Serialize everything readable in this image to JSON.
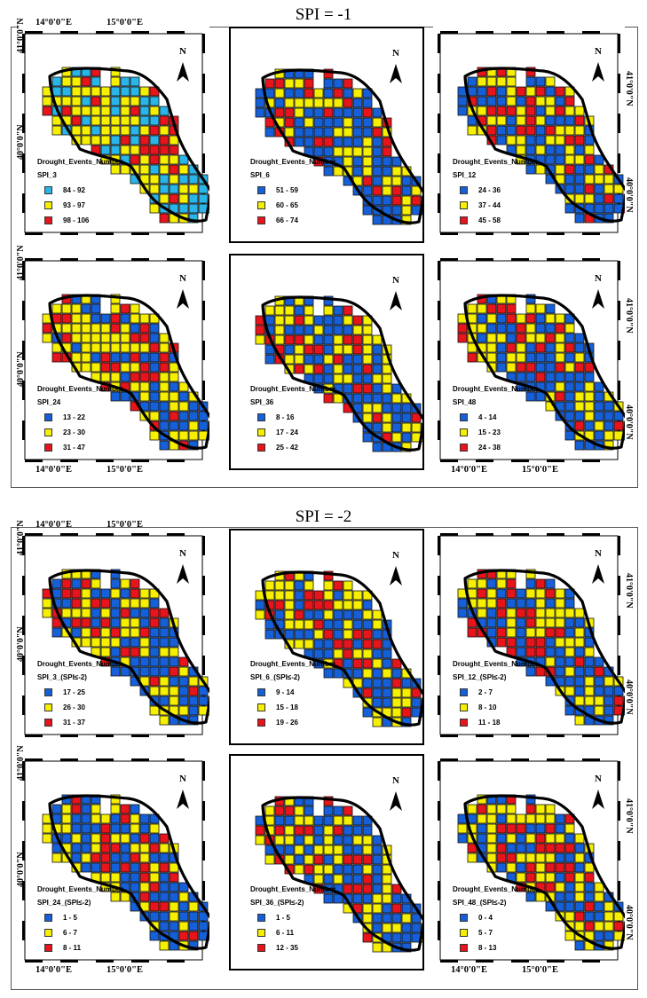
{
  "sections": [
    {
      "title": "SPI = -1",
      "panels": [
        {
          "legend_title": "Drought_Events_Number",
          "index": "SPI_3",
          "classes": [
            {
              "range": "84 - 92",
              "color": "#29b5e8"
            },
            {
              "range": "93 - 97",
              "color": "#f6f000"
            },
            {
              "range": "98 - 106",
              "color": "#e8141b"
            }
          ],
          "lon1": "14°0'0\"E",
          "lon2": "15°0'0\"E",
          "lat1": "41°0'0\"N",
          "lat2": "40°0'0\"N"
        },
        {
          "legend_title": "Drought_Events_Number",
          "index": "SPI_6",
          "classes": [
            {
              "range": "51 - 59",
              "color": "#1560d8"
            },
            {
              "range": "60 - 65",
              "color": "#f6f000"
            },
            {
              "range": "66 - 74",
              "color": "#e8141b"
            }
          ]
        },
        {
          "legend_title": "Drought_Events_Number",
          "index": "SPI_12",
          "classes": [
            {
              "range": "24 - 36",
              "color": "#1560d8"
            },
            {
              "range": "37 - 44",
              "color": "#f6f000"
            },
            {
              "range": "45 - 58",
              "color": "#e8141b"
            }
          ],
          "lat1": "41°0'0\"N",
          "lat2": "40°0'0\"N"
        },
        {
          "legend_title": "Drought_Events_Number",
          "index": "SPI_24",
          "classes": [
            {
              "range": "13 - 22",
              "color": "#1560d8"
            },
            {
              "range": "23 - 30",
              "color": "#f6f000"
            },
            {
              "range": "31 - 47",
              "color": "#e8141b"
            }
          ],
          "lon1": "14°0'0\"E",
          "lon2": "15°0'0\"E",
          "lat1": "41°0'0\"N",
          "lat2": "40°0'0\"N"
        },
        {
          "legend_title": "Drought_Events_Number",
          "index": "SPI_36",
          "classes": [
            {
              "range": "8 - 16",
              "color": "#1560d8"
            },
            {
              "range": "17 - 24",
              "color": "#f6f000"
            },
            {
              "range": "25 - 42",
              "color": "#e8141b"
            }
          ]
        },
        {
          "legend_title": "Drought_Events_Number",
          "index": "SPI_48",
          "classes": [
            {
              "range": "4 - 14",
              "color": "#1560d8"
            },
            {
              "range": "15 - 23",
              "color": "#f6f000"
            },
            {
              "range": "24 - 38",
              "color": "#e8141b"
            }
          ],
          "lon1": "14°0'0\"E",
          "lon2": "15°0'0\"E",
          "lat1": "41°0'0\"N",
          "lat2": "40°0'0\"N"
        }
      ]
    },
    {
      "title": "SPI = -2",
      "panels": [
        {
          "legend_title": "Drought_Events_Number",
          "index": "SPI_3_(SPI≤-2)",
          "classes": [
            {
              "range": "17 - 25",
              "color": "#1560d8"
            },
            {
              "range": "26 - 30",
              "color": "#f6f000"
            },
            {
              "range": "31 - 37",
              "color": "#e8141b"
            }
          ],
          "lon1": "14°0'0\"E",
          "lon2": "15°0'0\"E",
          "lat1": "41°0'0\"N",
          "lat2": "40°0'0\"N"
        },
        {
          "legend_title": "Drought_Events_Number",
          "index": "SPI_6_(SPI≤-2)",
          "classes": [
            {
              "range": "9 - 14",
              "color": "#1560d8"
            },
            {
              "range": "15 - 18",
              "color": "#f6f000"
            },
            {
              "range": "19 - 26",
              "color": "#e8141b"
            }
          ]
        },
        {
          "legend_title": "Drought_Events_Number",
          "index": "SPI_12_(SPI≤-2)",
          "classes": [
            {
              "range": "2 - 7",
              "color": "#1560d8"
            },
            {
              "range": "8 - 10",
              "color": "#f6f000"
            },
            {
              "range": "11 - 18",
              "color": "#e8141b"
            }
          ],
          "lat1": "41°0'0\"N",
          "lat2": "40°0'0\"N"
        },
        {
          "legend_title": "Drought_Events_Number",
          "index": "SPI_24_(SPI≤-2)",
          "classes": [
            {
              "range": "1 - 5",
              "color": "#1560d8"
            },
            {
              "range": "6 - 7",
              "color": "#f6f000"
            },
            {
              "range": "8 - 11",
              "color": "#e8141b"
            }
          ],
          "lon1": "14°0'0\"E",
          "lon2": "15°0'0\"E",
          "lat1": "41°0'0\"N",
          "lat2": "40°0'0\"N"
        },
        {
          "legend_title": "Drought_Events_Number",
          "index": "SPI_36_(SPI≤-2)",
          "classes": [
            {
              "range": "1 - 5",
              "color": "#1560d8"
            },
            {
              "range": "6 - 11",
              "color": "#f6f000"
            },
            {
              "range": "12 - 35",
              "color": "#e8141b"
            }
          ]
        },
        {
          "legend_title": "Drought_Events_Number",
          "index": "SPI_48_(SPI≤-2)",
          "classes": [
            {
              "range": "0 - 4",
              "color": "#1560d8"
            },
            {
              "range": "5 - 7",
              "color": "#f6f000"
            },
            {
              "range": "8 - 13",
              "color": "#e8141b"
            }
          ],
          "lon1": "14°0'0\"E",
          "lon2": "15°0'0\"E",
          "lat1": "41°0'0\"N",
          "lat2": "40°0'0\"N"
        }
      ]
    }
  ],
  "north_label": "N"
}
